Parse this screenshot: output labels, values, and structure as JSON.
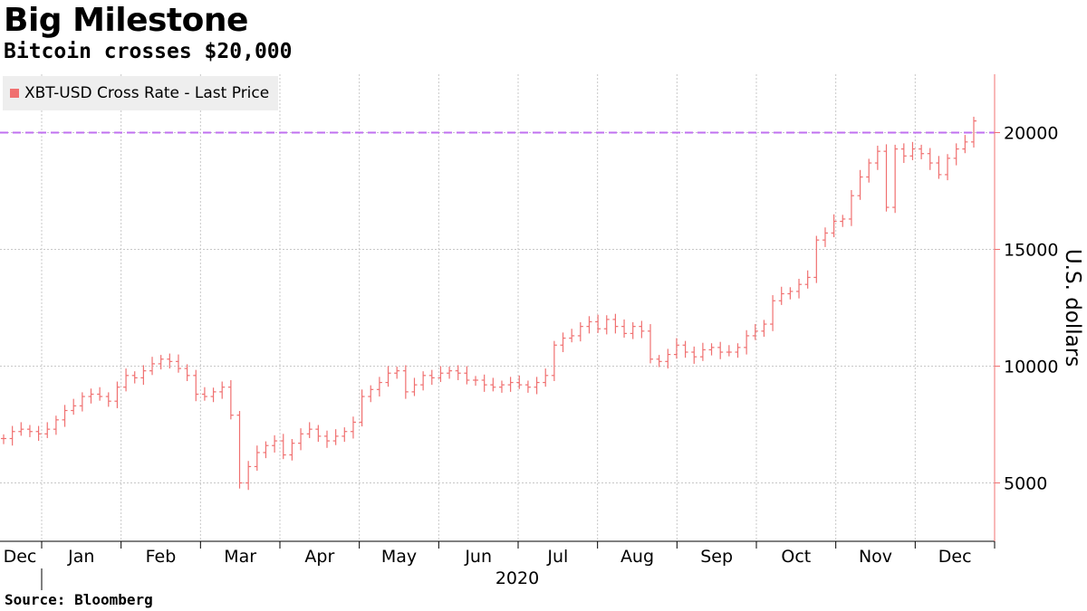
{
  "header": {
    "title": "Big Milestone",
    "subtitle": "Bitcoin crosses $20,000"
  },
  "footer": {
    "source": "Source: Bloomberg"
  },
  "legend": {
    "label": "XBT-USD Cross Rate - Last Price",
    "color": "#f07070"
  },
  "chart_data": {
    "type": "line",
    "title": "Big Milestone",
    "subtitle": "Bitcoin crosses $20,000",
    "xlabel": "2020",
    "ylabel": "U.S. dollars",
    "ylim": [
      2500,
      22500
    ],
    "yticks": [
      5000,
      10000,
      15000,
      20000
    ],
    "xticks": [
      "Dec",
      "Jan",
      "Feb",
      "Mar",
      "Apr",
      "May",
      "Jun",
      "Jul",
      "Aug",
      "Sep",
      "Oct",
      "Nov",
      "Dec"
    ],
    "year_label": "2020",
    "reference_line": {
      "value": 20000,
      "style": "dashed",
      "color": "#c070f0"
    },
    "grid": true,
    "legend_position": "top-left",
    "series": [
      {
        "name": "XBT-USD Cross Rate - Last Price",
        "color": "#f07070",
        "values": [
          6900,
          7200,
          7300,
          7200,
          7100,
          7300,
          7700,
          8100,
          8300,
          8700,
          8800,
          8700,
          8500,
          9100,
          9600,
          9500,
          9800,
          10100,
          10300,
          10200,
          9900,
          9600,
          8800,
          8700,
          8900,
          9100,
          7900,
          5000,
          5700,
          6300,
          6600,
          6800,
          6200,
          6700,
          7100,
          7300,
          7000,
          6800,
          7000,
          7200,
          7600,
          8700,
          9000,
          9300,
          9700,
          9800,
          8900,
          9200,
          9600,
          9500,
          9700,
          9800,
          9700,
          9400,
          9400,
          9200,
          9100,
          9200,
          9300,
          9200,
          9100,
          9300,
          9600,
          10900,
          11200,
          11300,
          11700,
          11900,
          11600,
          12000,
          11700,
          11400,
          11700,
          11500,
          10300,
          10200,
          10500,
          10900,
          10600,
          10400,
          10700,
          10800,
          10600,
          10600,
          10800,
          11300,
          11500,
          11800,
          12800,
          13100,
          13200,
          13500,
          13800,
          15400,
          15700,
          16200,
          16300,
          17300,
          18100,
          18700,
          19200,
          16800,
          19300,
          19000,
          19300,
          19100,
          18700,
          18200,
          18900,
          19300,
          19600,
          20500
        ]
      }
    ]
  }
}
